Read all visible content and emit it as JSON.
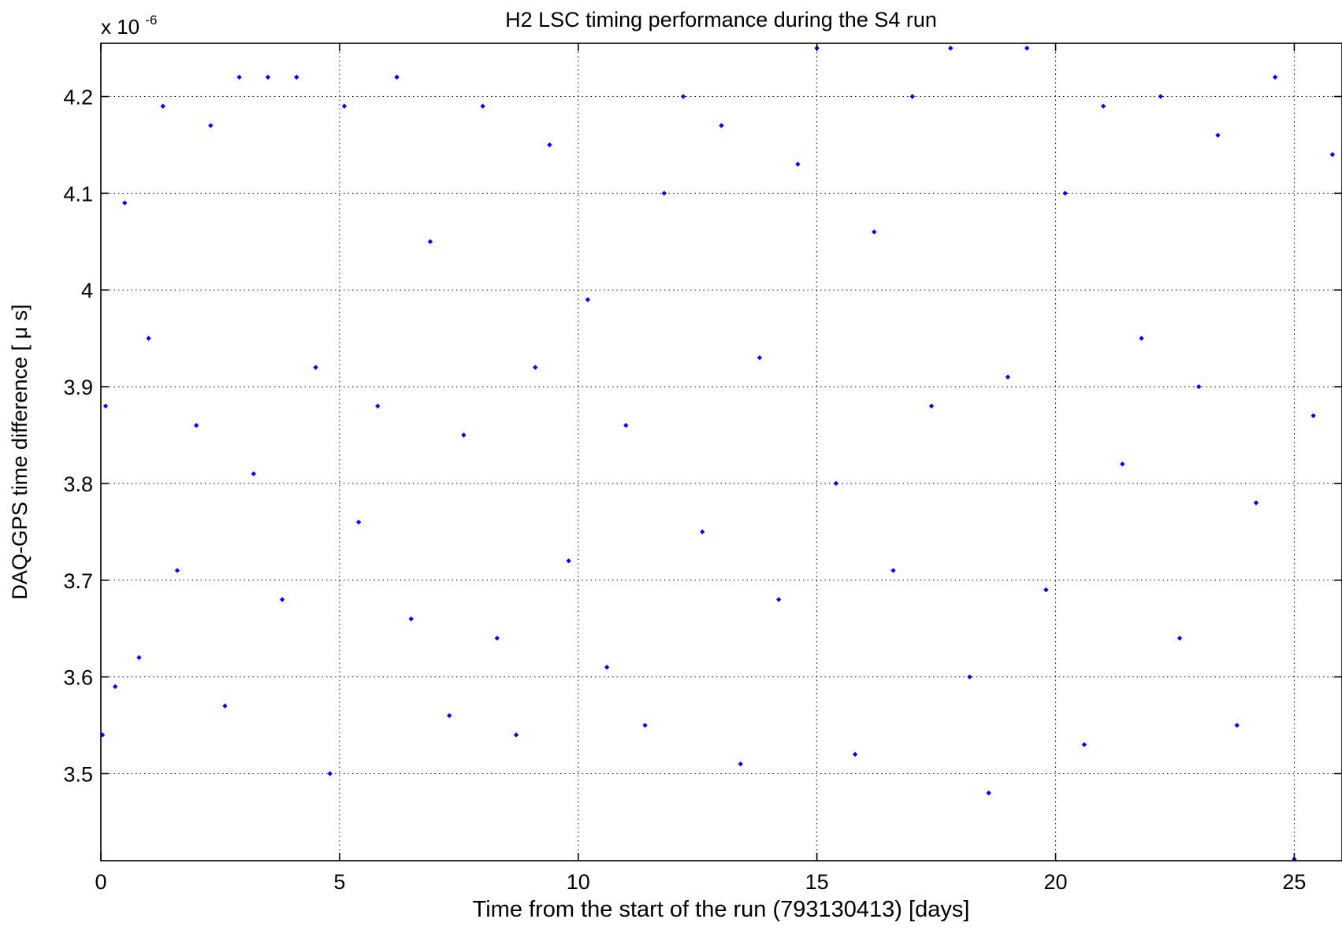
{
  "chart_data": {
    "type": "scatter",
    "title": "H2 LSC timing performance during the S4 run",
    "xlabel": "Time from the start of the run (793130413) [days]",
    "ylabel": "DAQ-GPS time difference [ μ s]",
    "y_exponent_base": "x 10",
    "y_exponent_power": "-6",
    "xlim": [
      0,
      26
    ],
    "ylim": [
      3.41,
      4.255
    ],
    "x_ticks": [
      0,
      5,
      10,
      15,
      20,
      25
    ],
    "x_tick_labels": [
      "0",
      "5",
      "10",
      "15",
      "20",
      "25"
    ],
    "y_ticks": [
      3.5,
      3.6,
      3.7,
      3.8,
      3.9,
      4.0,
      4.1,
      4.2
    ],
    "y_tick_labels": [
      "3.5",
      "3.6",
      "3.7",
      "3.8",
      "3.9",
      "4",
      "4.1",
      "4.2"
    ],
    "grid": true,
    "grid_style": "dotted",
    "marker": "diamond",
    "series_color": "#0000ff",
    "series": [
      {
        "x": [
          0.0,
          0.1,
          0.3,
          0.5,
          0.8,
          1.0,
          1.3,
          1.6,
          2.0,
          2.3,
          2.6,
          2.9,
          3.2,
          3.5,
          3.8,
          4.1,
          4.5,
          4.8,
          5.1,
          5.4,
          5.8,
          6.2,
          6.5,
          6.9,
          7.3,
          7.6,
          8.0,
          8.3,
          8.7,
          9.1,
          9.4,
          9.8,
          10.2,
          10.6,
          11.0,
          11.4,
          11.8,
          12.2,
          12.6,
          13.0,
          13.4,
          13.8,
          14.2,
          14.6,
          15.0,
          15.4,
          15.8,
          16.2,
          16.6,
          17.0,
          17.4,
          17.8,
          18.2,
          18.6,
          19.0,
          19.4,
          19.8,
          20.2,
          20.6,
          21.0,
          21.4,
          21.8,
          22.2,
          22.6,
          23.0,
          23.4,
          23.8,
          24.2,
          24.6,
          25.0,
          25.4,
          25.8
        ],
        "y": [
          3.54,
          3.88,
          3.59,
          4.09,
          3.62,
          3.95,
          4.19,
          3.71,
          3.86,
          4.17,
          3.57,
          4.22,
          3.81,
          4.22,
          3.68,
          4.22,
          3.92,
          3.5,
          4.19,
          3.76,
          3.88,
          4.22,
          3.66,
          4.05,
          3.56,
          3.85,
          4.19,
          3.64,
          3.54,
          3.92,
          4.15,
          3.72,
          3.99,
          3.61,
          3.86,
          3.55,
          4.1,
          4.2,
          3.75,
          4.17,
          3.51,
          3.93,
          3.68,
          4.13,
          4.25,
          3.8,
          3.52,
          4.06,
          3.71,
          4.2,
          3.88,
          4.25,
          3.6,
          3.48,
          3.91,
          4.25,
          3.69,
          4.1,
          3.53,
          4.19,
          3.82,
          3.95,
          4.2,
          3.64,
          3.9,
          4.16,
          3.55,
          3.78,
          4.22,
          3.41,
          3.87,
          4.14
        ]
      }
    ]
  }
}
